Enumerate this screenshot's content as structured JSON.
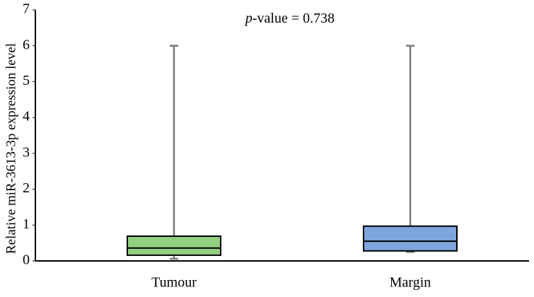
{
  "chart_data": {
    "type": "box",
    "annotation": "p-value = 0.738",
    "y_label": "Relative miR-3613-3p expression level",
    "categories": [
      "Tumour",
      "Margin"
    ],
    "colors": [
      "#93cf80",
      "#7ea6dc"
    ],
    "boxes": [
      {
        "min": 0.06,
        "q1": 0.16,
        "median": 0.36,
        "q3": 0.69,
        "max": 6
      },
      {
        "min": 0.25,
        "q1": 0.28,
        "median": 0.55,
        "q3": 0.97,
        "max": 6
      }
    ],
    "ylim": [
      0,
      7
    ],
    "yticks": [
      0,
      1,
      2,
      3,
      4,
      5,
      6,
      7
    ]
  }
}
